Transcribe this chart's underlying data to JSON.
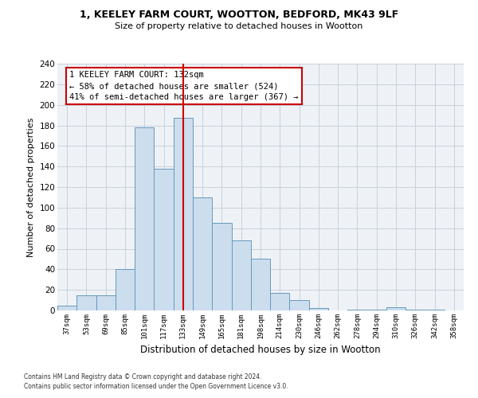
{
  "title1": "1, KEELEY FARM COURT, WOOTTON, BEDFORD, MK43 9LF",
  "title2": "Size of property relative to detached houses in Wootton",
  "xlabel": "Distribution of detached houses by size in Wootton",
  "ylabel": "Number of detached properties",
  "categories": [
    "37sqm",
    "53sqm",
    "69sqm",
    "85sqm",
    "101sqm",
    "117sqm",
    "133sqm",
    "149sqm",
    "165sqm",
    "181sqm",
    "198sqm",
    "214sqm",
    "230sqm",
    "246sqm",
    "262sqm",
    "278sqm",
    "294sqm",
    "310sqm",
    "326sqm",
    "342sqm",
    "358sqm"
  ],
  "values": [
    5,
    15,
    15,
    40,
    178,
    138,
    187,
    110,
    85,
    68,
    50,
    17,
    10,
    2,
    0,
    1,
    1,
    3,
    1,
    1,
    0
  ],
  "bar_color": "#ccdded",
  "bar_edge_color": "#6699bb",
  "vline_color": "#cc0000",
  "annotation_text": "1 KEELEY FARM COURT: 132sqm\n← 58% of detached houses are smaller (524)\n41% of semi-detached houses are larger (367) →",
  "annotation_box_color": "#cc0000",
  "ylim": [
    0,
    240
  ],
  "yticks": [
    0,
    20,
    40,
    60,
    80,
    100,
    120,
    140,
    160,
    180,
    200,
    220,
    240
  ],
  "footer1": "Contains HM Land Registry data © Crown copyright and database right 2024.",
  "footer2": "Contains public sector information licensed under the Open Government Licence v3.0.",
  "bg_color": "#eef2f7",
  "grid_color": "#c8d0da"
}
